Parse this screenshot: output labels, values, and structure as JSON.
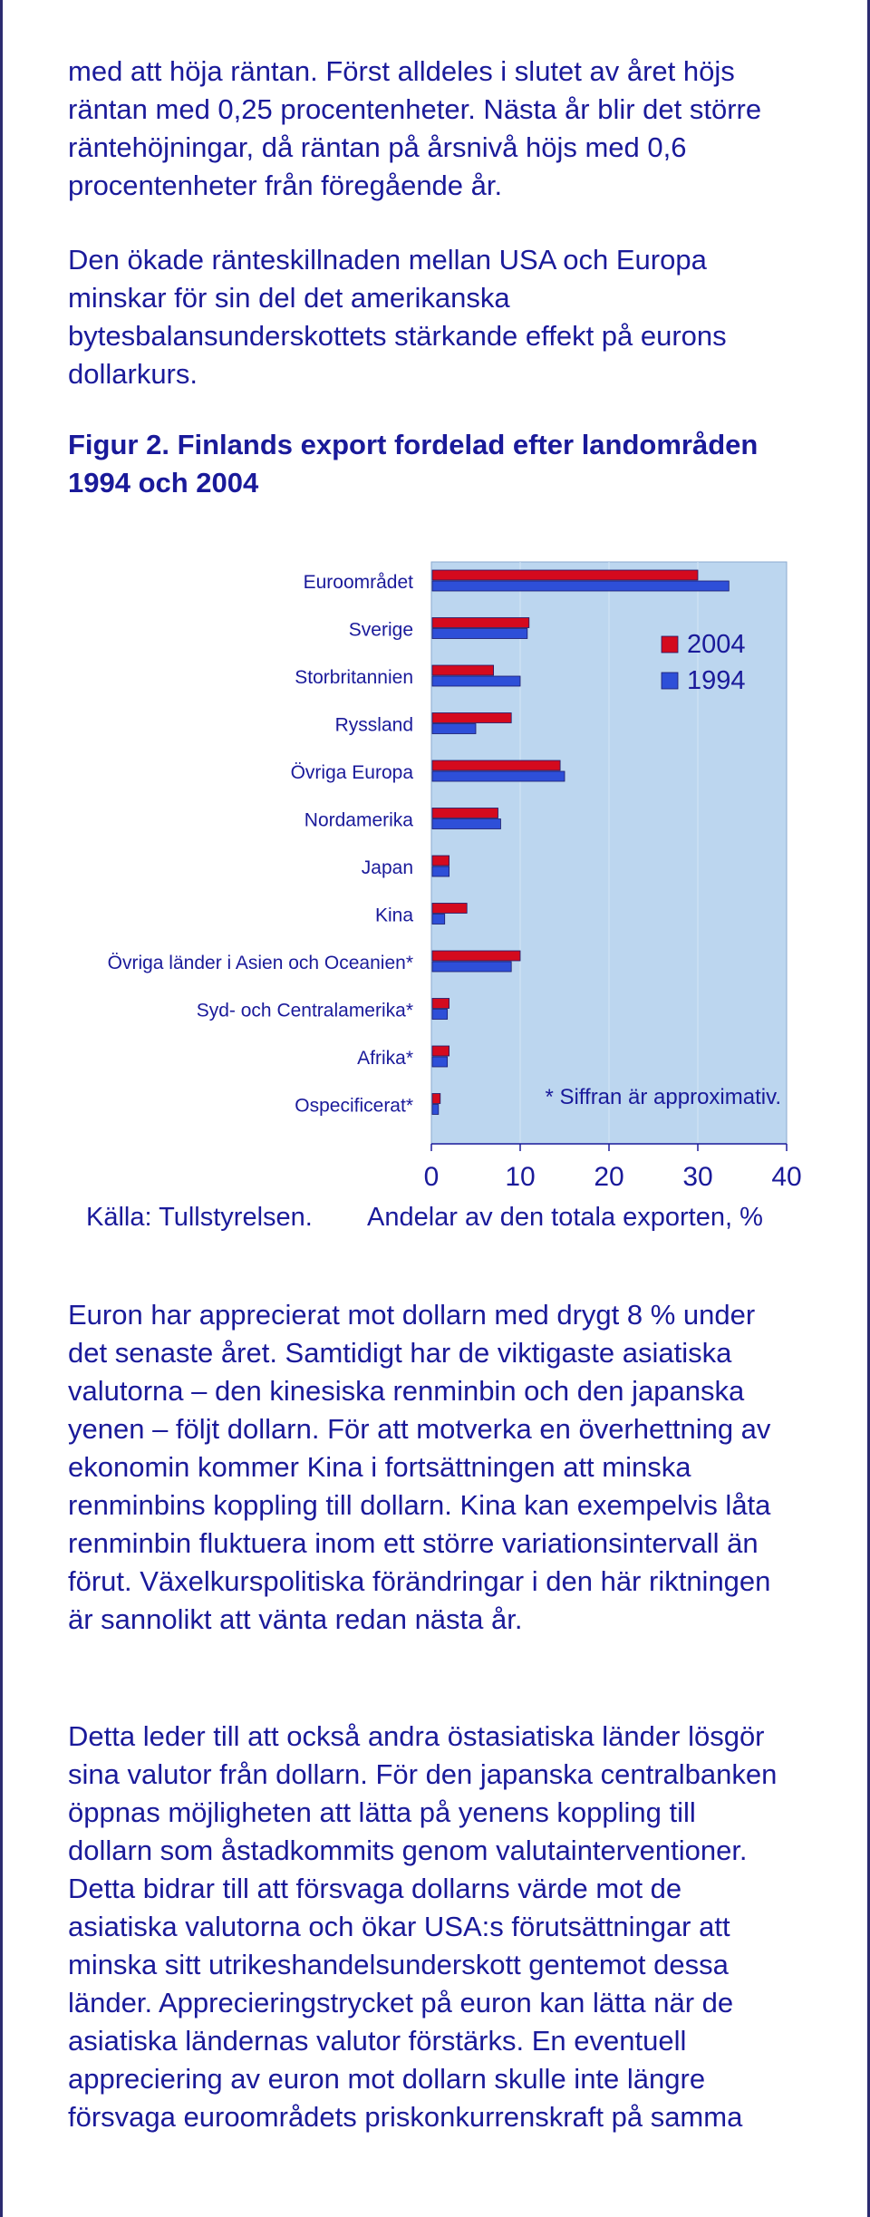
{
  "text": {
    "para1": "med att höja räntan. Först alldeles i slutet av året höjs\nräntan med 0,25 procentenheter. Nästa år blir det större\nräntehöjningar, då räntan på årsnivå höjs med 0,6\nprocentenheter från föregående år.",
    "para2": "Den ökade ränteskillnaden mellan USA och Europa\nminskar för sin del det amerikanska\nbytesbalansunderskottets stärkande effekt på eurons\ndollarkurs.",
    "figure_title": "Figur 2. Finlands export fordelad efter landområden\n1994 och 2004",
    "para3": "Euron har apprecierat mot dollarn med drygt 8 % under\ndet senaste året. Samtidigt har de viktigaste asiatiska\nvalutorna – den kinesiska renminbin och den japanska\nyenen – följt dollarn. För att motverka en överhettning av\nekonomin kommer Kina i fortsättningen att minska\nrenminbins koppling till dollarn. Kina kan exempelvis låta\nrenminbin fluktuera inom ett större variationsintervall än\nförut. Växelkurspolitiska förändringar i den här riktningen\när sannolikt att vänta redan nästa år.",
    "para4": "Detta leder till att också andra östasiatiska länder lösgör\nsina valutor från dollarn. För den japanska centralbanken\nöppnas möjligheten att lätta på yenens koppling till\ndollarn som åstadkommits genom valutainterventioner.\nDetta bidrar till att försvaga dollarns värde mot de\nasiatiska valutorna och ökar USA:s förutsättningar att\nminska sitt utrikeshandelsunderskott gentemot dessa\nländer. Apprecieringstrycket på euron kan lätta när de\nasiatiska ländernas valutor förstärks. En eventuell\nappreciering av euron mot dollarn skulle inte längre\nförsvaga euroområdets priskonkurrenskraft på samma"
  },
  "chart_data": {
    "type": "bar",
    "orientation": "horizontal",
    "categories": [
      "Euroområdet",
      "Sverige",
      "Storbritannien",
      "Ryssland",
      "Övriga Europa",
      "Nordamerika",
      "Japan",
      "Kina",
      "Övriga länder i Asien och Oceanien*",
      "Syd- och Centralamerika*",
      "Afrika*",
      "Ospecificerat*"
    ],
    "series": [
      {
        "name": "2004",
        "color": "#d40a1e",
        "values": [
          30,
          11,
          7,
          9,
          14.5,
          7.5,
          2,
          4,
          10,
          2,
          2,
          1
        ]
      },
      {
        "name": "1994",
        "color": "#2e4fd8",
        "values": [
          33.5,
          10.8,
          10,
          5,
          15,
          7.8,
          2,
          1.5,
          9,
          1.8,
          1.8,
          0.8
        ]
      }
    ],
    "xlim": [
      0,
      40
    ],
    "xticks": [
      0,
      10,
      20,
      30,
      40
    ],
    "xlabel": "Andelar av den totala exporten, %",
    "source": "Källa: Tullstyrelsen.",
    "note": "* Siffran är approximativ.",
    "legend_position": "top-right",
    "plot_background": "#bcd6ef"
  }
}
